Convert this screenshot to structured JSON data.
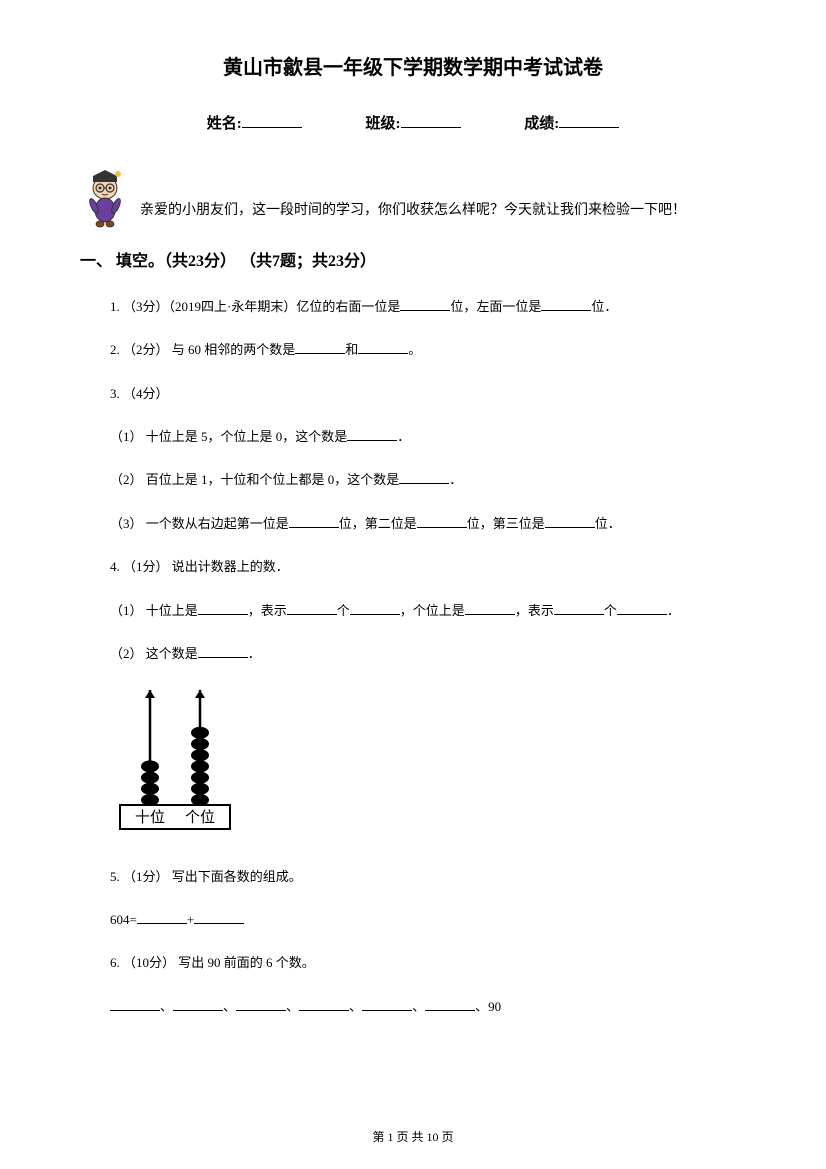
{
  "title": "黄山市歙县一年级下学期数学期中考试试卷",
  "info": {
    "name_label": "姓名:",
    "class_label": "班级:",
    "score_label": "成绩:"
  },
  "greeting": "亲爱的小朋友们，这一段时间的学习，你们收获怎么样呢？今天就让我们来检验一下吧！",
  "section1": {
    "title": "一、 填空。（共23分） （共7题；共23分）"
  },
  "q1": {
    "prefix": "1. （3分）（2019四上·永年期末）亿位的右面一位是",
    "mid": "位，左面一位是",
    "suffix": "位．"
  },
  "q2": {
    "prefix": "2. （2分） 与 60 相邻的两个数是",
    "mid": "和",
    "suffix": "。"
  },
  "q3": {
    "label": "3. （4分）",
    "s1_prefix": "（1） 十位上是 5，个位上是 0，这个数是",
    "s1_suffix": "．",
    "s2_prefix": "（2） 百位上是 1，十位和个位上都是 0，这个数是",
    "s2_suffix": "．",
    "s3_prefix": "（3） 一个数从右边起第一位是",
    "s3_mid1": "位，第二位是",
    "s3_mid2": "位，第三位是",
    "s3_suffix": "位．"
  },
  "q4": {
    "label": "4. （1分） 说出计数器上的数．",
    "s1_p1": "（1） 十位上是",
    "s1_p2": "，表示",
    "s1_p3": "个",
    "s1_p4": "，个位上是",
    "s1_p5": "，表示",
    "s1_p6": "个",
    "s1_p7": "．",
    "s2_prefix": "（2） 这个数是",
    "s2_suffix": "．"
  },
  "abacus": {
    "tens_label": "十位",
    "ones_label": "个位",
    "tens_beads": 4,
    "ones_beads": 7,
    "bead_color": "#000000",
    "frame_color": "#000000"
  },
  "q5": {
    "label": "5. （1分） 写出下面各数的组成。",
    "expr_prefix": "604=",
    "expr_mid": "+"
  },
  "q6": {
    "label": "6. （10分） 写出 90 前面的 6 个数。",
    "sep": "、",
    "end": "90"
  },
  "footer": "第 1 页 共 10 页"
}
